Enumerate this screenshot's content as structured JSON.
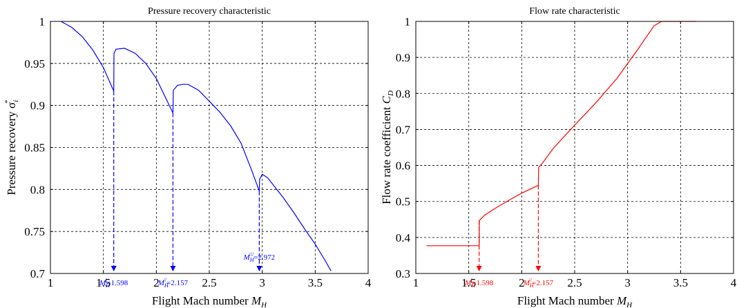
{
  "chart_data": [
    {
      "type": "line",
      "title": "Pressure recovery characteristic",
      "xlabel": "Flight Mach number M_H",
      "xlabel_main": "Flight Mach number ",
      "xlabel_sym": "M",
      "xlabel_sub": "H",
      "ylabel": "Pressure recovery σ_i^*",
      "ylabel_main": "Pressure recovery  σ",
      "ylabel_sub": "i",
      "ylabel_sup": "*",
      "xlim": [
        1,
        4
      ],
      "ylim": [
        0.7,
        1
      ],
      "xticks": [
        1,
        1.5,
        2,
        2.5,
        3,
        3.5,
        4
      ],
      "xtick_labels": [
        "1",
        "1.5",
        "2",
        "2.5",
        "3",
        "3.5",
        "4"
      ],
      "yticks": [
        0.7,
        0.75,
        0.8,
        0.85,
        0.9,
        0.95,
        1
      ],
      "ytick_labels": [
        "0.7",
        "0.75",
        "0.8",
        "0.85",
        "0.9",
        "0.95",
        "1"
      ],
      "grid": true,
      "color": "#0000ff",
      "segments": [
        {
          "x": [
            1.1,
            1.2,
            1.3,
            1.4,
            1.5,
            1.598
          ],
          "y": [
            1.0,
            0.993,
            0.982,
            0.966,
            0.945,
            0.917
          ]
        },
        {
          "x": [
            1.598,
            1.6,
            1.62,
            1.7,
            1.8,
            1.9,
            2.0,
            2.157
          ],
          "y": [
            0.917,
            0.962,
            0.967,
            0.968,
            0.962,
            0.95,
            0.932,
            0.891
          ]
        },
        {
          "x": [
            2.157,
            2.16,
            2.2,
            2.25,
            2.3,
            2.4,
            2.5,
            2.6,
            2.7,
            2.8,
            2.9,
            2.972
          ],
          "y": [
            0.891,
            0.918,
            0.924,
            0.925,
            0.925,
            0.918,
            0.905,
            0.892,
            0.876,
            0.855,
            0.823,
            0.798
          ]
        },
        {
          "x": [
            2.972,
            2.975,
            3.0,
            3.05,
            3.1,
            3.2,
            3.3,
            3.4,
            3.5,
            3.6,
            3.65
          ],
          "y": [
            0.798,
            0.812,
            0.818,
            0.814,
            0.806,
            0.79,
            0.772,
            0.753,
            0.735,
            0.714,
            0.703
          ]
        }
      ],
      "markers": [
        {
          "x": 1.598,
          "y_top": 0.917,
          "label_sym": "M",
          "label_sub": "H",
          "label_sup": "/",
          "label_val": "=1.598",
          "label_pos": "below"
        },
        {
          "x": 2.157,
          "y_top": 0.891,
          "label_sym": "M",
          "label_sub": "H",
          "label_sup": "//",
          "label_val": "=2.157",
          "label_pos": "below"
        },
        {
          "x": 2.972,
          "y_top": 0.798,
          "label_sym": "M",
          "label_sub": "H",
          "label_sup": "///",
          "label_val": "=2.972",
          "label_pos": "above"
        }
      ]
    },
    {
      "type": "line",
      "title": "Flow rate characteristic",
      "xlabel": "Flight Mach number M_H",
      "xlabel_main": "Flight Mach number ",
      "xlabel_sym": "M",
      "xlabel_sub": "H",
      "ylabel": "Flow rate coefficient C_D",
      "ylabel_main": "Flow rate coefficient ",
      "ylabel_sym": "C",
      "ylabel_sub": "D",
      "xlim": [
        1,
        4
      ],
      "ylim": [
        0.3,
        1
      ],
      "xticks": [
        1,
        1.5,
        2,
        2.5,
        3,
        3.5,
        4
      ],
      "xtick_labels": [
        "1",
        "1.5",
        "2",
        "2.5",
        "3",
        "3.5",
        "4"
      ],
      "yticks": [
        0.3,
        0.4,
        0.5,
        0.6,
        0.7,
        0.8,
        0.9,
        1
      ],
      "ytick_labels": [
        "0.3",
        "0.4",
        "0.5",
        "0.6",
        "0.7",
        "0.8",
        "0.9",
        "1"
      ],
      "grid": true,
      "color": "#ff0000",
      "segments": [
        {
          "x": [
            1.1,
            1.598
          ],
          "y": [
            0.377,
            0.377
          ]
        },
        {
          "x": [
            1.598,
            1.6,
            1.65,
            1.75,
            1.9,
            2.0,
            2.157
          ],
          "y": [
            0.377,
            0.447,
            0.462,
            0.481,
            0.507,
            0.523,
            0.545
          ]
        },
        {
          "x": [
            2.157,
            2.16,
            2.2,
            2.3,
            2.5,
            2.7,
            2.9,
            3.1,
            3.25,
            3.32,
            3.65
          ],
          "y": [
            0.545,
            0.595,
            0.608,
            0.648,
            0.712,
            0.774,
            0.842,
            0.924,
            0.988,
            1.0,
            1.0
          ]
        }
      ],
      "markers": [
        {
          "x": 1.598,
          "y_top": 0.447,
          "label_sym": "M",
          "label_sub": "H",
          "label_sup": "/",
          "label_val": "=1.598",
          "label_pos": "below"
        },
        {
          "x": 2.157,
          "y_top": 0.545,
          "label_sym": "M",
          "label_sub": "H",
          "label_sup": "//",
          "label_val": "=2.157",
          "label_pos": "below"
        }
      ]
    }
  ]
}
